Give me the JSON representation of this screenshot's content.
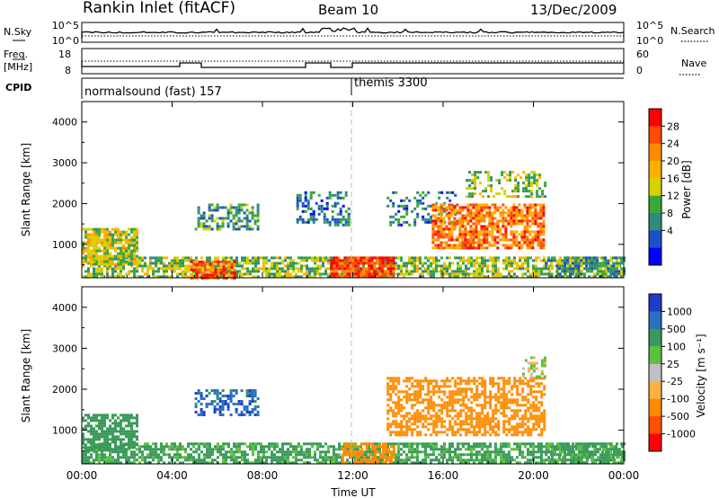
{
  "header": {
    "station": "Rankin Inlet (fitACF)",
    "beam": "Beam 10",
    "date": "13/Dec/2009"
  },
  "noise_panel": {
    "left_label": "N.Sky",
    "left_ticks": [
      "10^5",
      "10^0"
    ],
    "right_label": "N.Search",
    "right_ticks": [
      "10^5",
      "10^0"
    ]
  },
  "freq_panel": {
    "left_label_1": "Freq.",
    "left_label_2": "[MHz]",
    "left_ticks": [
      "18",
      "8"
    ],
    "right_label": "Nave",
    "right_ticks": [
      "60",
      "0"
    ]
  },
  "cpid_panel": {
    "label": "CPID",
    "programs": [
      {
        "name": "normalsound (fast) 157",
        "start_hour": 0
      },
      {
        "name": "themis 3300",
        "start_hour": 12
      }
    ]
  },
  "chart_data": [
    {
      "type": "heatmap",
      "title": "",
      "xlabel": "Time UT",
      "ylabel": "Slant Range [km]",
      "xlim": [
        0,
        24
      ],
      "ylim": [
        180,
        4500
      ],
      "x_ticks": [
        "00:00",
        "04:00",
        "08:00",
        "12:00",
        "16:00",
        "20:00",
        "00:00"
      ],
      "y_ticks": [
        1000,
        2000,
        3000,
        4000
      ],
      "colorbar": {
        "label": "Power [dB]",
        "ticks": [
          "28",
          "24",
          "20",
          "16",
          "12",
          "8",
          "4"
        ],
        "colors": [
          "#ff0000",
          "#ff4a00",
          "#ff8c00",
          "#ffb000",
          "#d8d000",
          "#3aa83a",
          "#2e8b7a",
          "#1a50c8",
          "#0000ff"
        ]
      },
      "echo_regions": [
        {
          "t0": 0.0,
          "t1": 24.0,
          "r0": 180,
          "r1": 700,
          "value": 14,
          "density": 0.7
        },
        {
          "t0": 0.0,
          "t1": 2.5,
          "r0": 500,
          "r1": 1400,
          "value": 16,
          "density": 0.8
        },
        {
          "t0": 4.8,
          "t1": 6.8,
          "r0": 200,
          "r1": 600,
          "value": 26,
          "density": 0.8
        },
        {
          "t0": 5.0,
          "t1": 7.8,
          "r0": 1400,
          "r1": 2000,
          "value": 10,
          "density": 0.5
        },
        {
          "t0": 9.5,
          "t1": 11.8,
          "r0": 1500,
          "r1": 2300,
          "value": 8,
          "density": 0.4
        },
        {
          "t0": 11.0,
          "t1": 13.8,
          "r0": 200,
          "r1": 700,
          "value": 28,
          "density": 0.85
        },
        {
          "t0": 13.5,
          "t1": 16.5,
          "r0": 1500,
          "r1": 2300,
          "value": 8,
          "density": 0.3
        },
        {
          "t0": 15.5,
          "t1": 20.5,
          "r0": 900,
          "r1": 2000,
          "value": 24,
          "density": 0.75
        },
        {
          "t0": 17.0,
          "t1": 20.5,
          "r0": 2200,
          "r1": 2800,
          "value": 14,
          "density": 0.35
        },
        {
          "t0": 20.5,
          "t1": 24.0,
          "r0": 180,
          "r1": 700,
          "value": 10,
          "density": 0.6
        }
      ]
    },
    {
      "type": "heatmap",
      "title": "",
      "xlabel": "Time UT",
      "ylabel": "Slant Range [km]",
      "xlim": [
        0,
        24
      ],
      "ylim": [
        180,
        4500
      ],
      "x_ticks": [
        "00:00",
        "04:00",
        "08:00",
        "12:00",
        "16:00",
        "20:00",
        "00:00"
      ],
      "y_ticks": [
        1000,
        2000,
        3000,
        4000
      ],
      "colorbar": {
        "label": "Velocity [m s⁻¹]",
        "ticks": [
          "1000",
          "500",
          "100",
          "25",
          "-25",
          "-100",
          "-500",
          "-1000"
        ],
        "colors": [
          "#1f3cc8",
          "#2a70c0",
          "#3a9a5a",
          "#5cc040",
          "#c0c0c0",
          "#ffb040",
          "#ff8c00",
          "#ff5000",
          "#ff0000"
        ]
      },
      "echo_regions": [
        {
          "t0": 0.0,
          "t1": 24.0,
          "r0": 180,
          "r1": 700,
          "value": 150,
          "density": 0.7
        },
        {
          "t0": 0.0,
          "t1": 2.5,
          "r0": 500,
          "r1": 1400,
          "value": 200,
          "density": 0.7
        },
        {
          "t0": 5.0,
          "t1": 7.8,
          "r0": 1400,
          "r1": 2000,
          "value": 800,
          "density": 0.5
        },
        {
          "t0": 11.5,
          "t1": 13.8,
          "r0": 200,
          "r1": 700,
          "value": -300,
          "density": 0.6
        },
        {
          "t0": 13.5,
          "t1": 20.5,
          "r0": 900,
          "r1": 2300,
          "value": -200,
          "density": 0.6
        },
        {
          "t0": 19.5,
          "t1": 20.5,
          "r0": 2300,
          "r1": 2800,
          "value": 0,
          "density": 0.4
        },
        {
          "t0": 20.5,
          "t1": 24.0,
          "r0": 180,
          "r1": 700,
          "value": 150,
          "density": 0.5
        }
      ]
    }
  ]
}
